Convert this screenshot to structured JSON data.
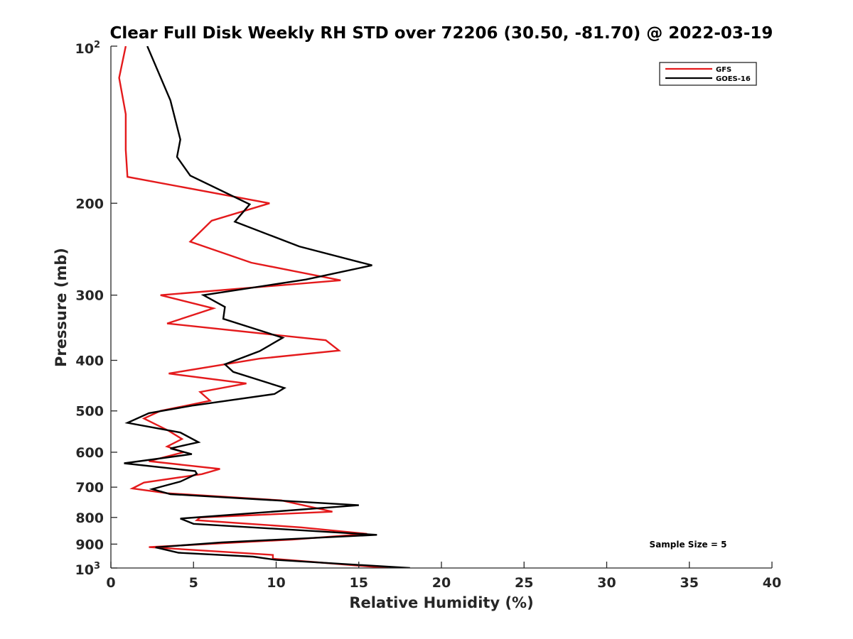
{
  "chart_data": {
    "type": "line",
    "title": "Clear Full Disk Weekly RH STD over 72206 (30.50, -81.70) @ 2022-03-19",
    "xlabel": "Relative Humidity (%)",
    "ylabel": "Pressure (mb)",
    "xlim": [
      0,
      40
    ],
    "ylim": [
      100,
      1000
    ],
    "yscale": "log",
    "y_reversed": true,
    "grid": false,
    "legend_position": "top-right",
    "x_ticks": [
      "0",
      "5",
      "10",
      "15",
      "20",
      "25",
      "30",
      "35",
      "40"
    ],
    "x_tick_values": [
      0,
      5,
      10,
      15,
      20,
      25,
      30,
      35,
      40
    ],
    "y_ticks": [
      "200",
      "300",
      "400",
      "500",
      "600",
      "700",
      "800",
      "900"
    ],
    "y_tick_values": [
      200,
      300,
      400,
      500,
      600,
      700,
      800,
      900
    ],
    "y_tick_top_base": "10",
    "y_tick_top_exp": "2",
    "y_tick_bottom_base": "10",
    "y_tick_bottom_exp": "3",
    "annotation": "Sample Size = 5",
    "series": [
      {
        "name": "GFS",
        "color": "#e41a1c",
        "points": [
          [
            0.9,
            100
          ],
          [
            0.5,
            115
          ],
          [
            0.9,
            135
          ],
          [
            0.9,
            158
          ],
          [
            1.0,
            178
          ],
          [
            9.6,
            200
          ],
          [
            6.1,
            216
          ],
          [
            4.8,
            237
          ],
          [
            8.5,
            260
          ],
          [
            13.9,
            281
          ],
          [
            3.0,
            300
          ],
          [
            6.2,
            318
          ],
          [
            3.4,
            340
          ],
          [
            13.0,
            366
          ],
          [
            13.8,
            383
          ],
          [
            9.0,
            397
          ],
          [
            3.5,
            424
          ],
          [
            8.2,
            443
          ],
          [
            5.4,
            460
          ],
          [
            6.0,
            478
          ],
          [
            3.0,
            500
          ],
          [
            2.0,
            517
          ],
          [
            3.5,
            546
          ],
          [
            4.3,
            566
          ],
          [
            3.4,
            585
          ],
          [
            4.4,
            600
          ],
          [
            2.3,
            624
          ],
          [
            6.6,
            646
          ],
          [
            5.5,
            661
          ],
          [
            2.0,
            686
          ],
          [
            1.3,
            704
          ],
          [
            3.4,
            719
          ],
          [
            10.3,
            742
          ],
          [
            13.4,
            780
          ],
          [
            5.4,
            800
          ],
          [
            5.2,
            810
          ],
          [
            11.5,
            836
          ],
          [
            15.5,
            860
          ],
          [
            11.0,
            882
          ],
          [
            2.3,
            912
          ],
          [
            9.8,
            944
          ],
          [
            9.8,
            960
          ],
          [
            16.8,
            1000
          ]
        ]
      },
      {
        "name": "GOES-16",
        "color": "#000000",
        "points": [
          [
            2.2,
            100
          ],
          [
            3.6,
            127
          ],
          [
            4.2,
            151
          ],
          [
            4.0,
            163
          ],
          [
            4.8,
            177
          ],
          [
            8.4,
            201
          ],
          [
            7.5,
            217
          ],
          [
            11.4,
            242
          ],
          [
            15.8,
            263
          ],
          [
            11.8,
            280
          ],
          [
            5.6,
            300
          ],
          [
            6.9,
            316
          ],
          [
            6.8,
            333
          ],
          [
            10.4,
            362
          ],
          [
            9.0,
            384
          ],
          [
            6.9,
            407
          ],
          [
            7.4,
            421
          ],
          [
            10.5,
            452
          ],
          [
            9.9,
            464
          ],
          [
            5.0,
            488
          ],
          [
            2.3,
            505
          ],
          [
            1.0,
            527
          ],
          [
            4.2,
            550
          ],
          [
            5.3,
            574
          ],
          [
            3.6,
            590
          ],
          [
            4.9,
            605
          ],
          [
            0.8,
            630
          ],
          [
            5.1,
            652
          ],
          [
            5.2,
            660
          ],
          [
            4.2,
            683
          ],
          [
            2.5,
            706
          ],
          [
            3.6,
            722
          ],
          [
            15.0,
            758
          ],
          [
            4.2,
            804
          ],
          [
            5.0,
            823
          ],
          [
            16.1,
            864
          ],
          [
            6.7,
            893
          ],
          [
            2.7,
            913
          ],
          [
            4.1,
            935
          ],
          [
            8.6,
            951
          ],
          [
            10.0,
            965
          ],
          [
            18.1,
            1000
          ]
        ]
      }
    ]
  }
}
